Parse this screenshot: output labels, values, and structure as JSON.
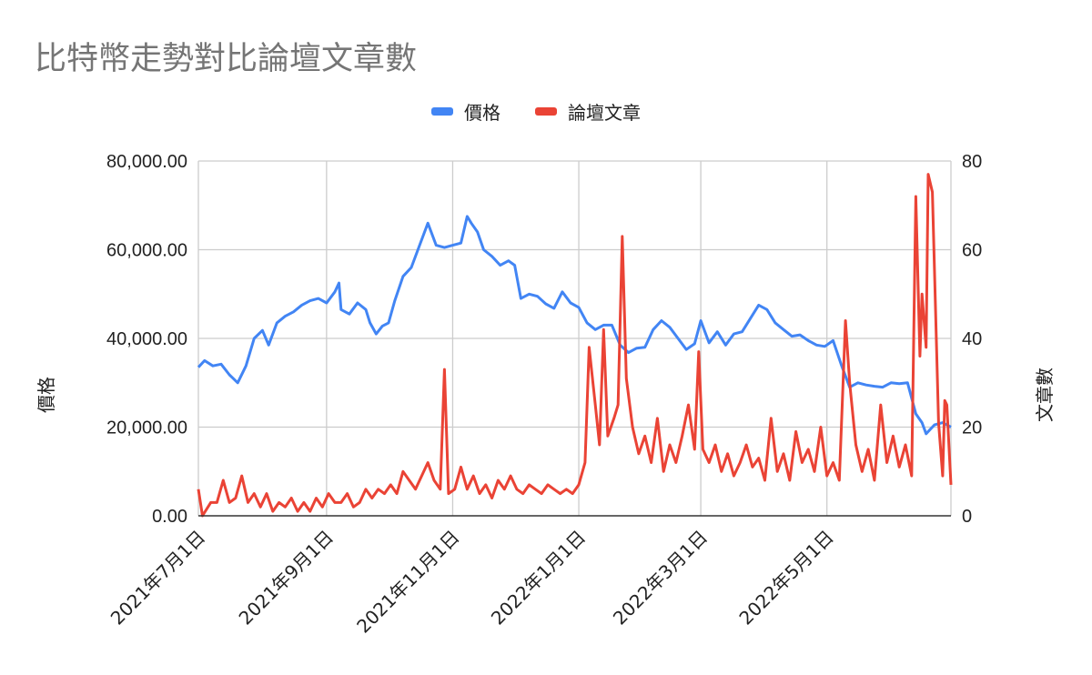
{
  "chart_data": {
    "type": "line",
    "title": "比特幣走勢對比論壇文章數",
    "ylabel": "價格",
    "y2label": "文章數",
    "ylim": [
      0,
      80000
    ],
    "y2lim": [
      0,
      80
    ],
    "yticks": [
      "0.00",
      "20,000.00",
      "40,000.00",
      "60,000.00",
      "80,000.00"
    ],
    "y2ticks": [
      "0",
      "20",
      "40",
      "60",
      "80"
    ],
    "xlim": [
      "2021-07-01",
      "2022-06-30"
    ],
    "xticks": [
      {
        "date": "2021-07-01",
        "label": "2021年7月1日"
      },
      {
        "date": "2021-09-01",
        "label": "2021年9月1日"
      },
      {
        "date": "2021-11-01",
        "label": "2021年11月1日"
      },
      {
        "date": "2022-01-01",
        "label": "2022年1月1日"
      },
      {
        "date": "2022-03-01",
        "label": "2022年3月1日"
      },
      {
        "date": "2022-05-01",
        "label": "2022年5月1日"
      }
    ],
    "grid": true,
    "legend_position": "top",
    "series": [
      {
        "name": "價格",
        "axis": "left",
        "color": "#4285f4",
        "points": [
          [
            "2021-07-01",
            33500
          ],
          [
            "2021-07-04",
            35000
          ],
          [
            "2021-07-08",
            33800
          ],
          [
            "2021-07-12",
            34200
          ],
          [
            "2021-07-16",
            31800
          ],
          [
            "2021-07-20",
            30000
          ],
          [
            "2021-07-24",
            33800
          ],
          [
            "2021-07-28",
            40000
          ],
          [
            "2021-08-01",
            41800
          ],
          [
            "2021-08-04",
            38500
          ],
          [
            "2021-08-08",
            43500
          ],
          [
            "2021-08-12",
            45000
          ],
          [
            "2021-08-16",
            46000
          ],
          [
            "2021-08-20",
            47500
          ],
          [
            "2021-08-24",
            48500
          ],
          [
            "2021-08-28",
            49000
          ],
          [
            "2021-09-01",
            48000
          ],
          [
            "2021-09-05",
            50500
          ],
          [
            "2021-09-07",
            52500
          ],
          [
            "2021-09-08",
            46500
          ],
          [
            "2021-09-12",
            45500
          ],
          [
            "2021-09-16",
            48000
          ],
          [
            "2021-09-20",
            46500
          ],
          [
            "2021-09-22",
            43500
          ],
          [
            "2021-09-25",
            41000
          ],
          [
            "2021-09-28",
            42800
          ],
          [
            "2021-10-01",
            43500
          ],
          [
            "2021-10-04",
            48500
          ],
          [
            "2021-10-08",
            54000
          ],
          [
            "2021-10-12",
            56000
          ],
          [
            "2021-10-16",
            61000
          ],
          [
            "2021-10-20",
            66000
          ],
          [
            "2021-10-24",
            61000
          ],
          [
            "2021-10-28",
            60500
          ],
          [
            "2021-11-01",
            61000
          ],
          [
            "2021-11-05",
            61500
          ],
          [
            "2021-11-08",
            67500
          ],
          [
            "2021-11-10",
            66000
          ],
          [
            "2021-11-13",
            64000
          ],
          [
            "2021-11-16",
            60000
          ],
          [
            "2021-11-20",
            58500
          ],
          [
            "2021-11-24",
            56500
          ],
          [
            "2021-11-28",
            57500
          ],
          [
            "2021-12-01",
            56500
          ],
          [
            "2021-12-04",
            49000
          ],
          [
            "2021-12-08",
            50000
          ],
          [
            "2021-12-12",
            49500
          ],
          [
            "2021-12-16",
            47800
          ],
          [
            "2021-12-20",
            46800
          ],
          [
            "2021-12-24",
            50500
          ],
          [
            "2021-12-28",
            48000
          ],
          [
            "2022-01-01",
            47000
          ],
          [
            "2022-01-05",
            43500
          ],
          [
            "2022-01-09",
            42000
          ],
          [
            "2022-01-13",
            43000
          ],
          [
            "2022-01-17",
            43000
          ],
          [
            "2022-01-21",
            38500
          ],
          [
            "2022-01-25",
            36800
          ],
          [
            "2022-01-29",
            37800
          ],
          [
            "2022-02-02",
            38000
          ],
          [
            "2022-02-06",
            42000
          ],
          [
            "2022-02-10",
            44000
          ],
          [
            "2022-02-14",
            42500
          ],
          [
            "2022-02-18",
            40000
          ],
          [
            "2022-02-22",
            37500
          ],
          [
            "2022-02-26",
            38800
          ],
          [
            "2022-03-01",
            44000
          ],
          [
            "2022-03-05",
            39000
          ],
          [
            "2022-03-09",
            41500
          ],
          [
            "2022-03-13",
            38500
          ],
          [
            "2022-03-17",
            41000
          ],
          [
            "2022-03-21",
            41500
          ],
          [
            "2022-03-25",
            44500
          ],
          [
            "2022-03-29",
            47500
          ],
          [
            "2022-04-02",
            46500
          ],
          [
            "2022-04-06",
            43500
          ],
          [
            "2022-04-10",
            42000
          ],
          [
            "2022-04-14",
            40500
          ],
          [
            "2022-04-18",
            40800
          ],
          [
            "2022-04-22",
            39500
          ],
          [
            "2022-04-26",
            38500
          ],
          [
            "2022-04-30",
            38200
          ],
          [
            "2022-05-04",
            39500
          ],
          [
            "2022-05-08",
            34000
          ],
          [
            "2022-05-12",
            29000
          ],
          [
            "2022-05-16",
            30000
          ],
          [
            "2022-05-20",
            29500
          ],
          [
            "2022-05-24",
            29200
          ],
          [
            "2022-05-28",
            29000
          ],
          [
            "2022-06-01",
            30000
          ],
          [
            "2022-06-05",
            29800
          ],
          [
            "2022-06-09",
            30000
          ],
          [
            "2022-06-13",
            23000
          ],
          [
            "2022-06-16",
            21000
          ],
          [
            "2022-06-18",
            18500
          ],
          [
            "2022-06-22",
            20500
          ],
          [
            "2022-06-26",
            21000
          ],
          [
            "2022-06-30",
            20000
          ]
        ]
      },
      {
        "name": "論壇文章",
        "axis": "right",
        "color": "#ea4335",
        "points": [
          [
            "2021-07-01",
            6
          ],
          [
            "2021-07-03",
            0
          ],
          [
            "2021-07-07",
            3
          ],
          [
            "2021-07-10",
            3
          ],
          [
            "2021-07-13",
            8
          ],
          [
            "2021-07-16",
            3
          ],
          [
            "2021-07-19",
            4
          ],
          [
            "2021-07-22",
            9
          ],
          [
            "2021-07-25",
            3
          ],
          [
            "2021-07-28",
            5
          ],
          [
            "2021-07-31",
            2
          ],
          [
            "2021-08-03",
            5
          ],
          [
            "2021-08-06",
            1
          ],
          [
            "2021-08-09",
            3
          ],
          [
            "2021-08-12",
            2
          ],
          [
            "2021-08-15",
            4
          ],
          [
            "2021-08-18",
            1
          ],
          [
            "2021-08-21",
            3
          ],
          [
            "2021-08-24",
            1
          ],
          [
            "2021-08-27",
            4
          ],
          [
            "2021-08-30",
            2
          ],
          [
            "2021-09-02",
            5
          ],
          [
            "2021-09-05",
            3
          ],
          [
            "2021-09-08",
            3
          ],
          [
            "2021-09-11",
            5
          ],
          [
            "2021-09-14",
            2
          ],
          [
            "2021-09-17",
            3
          ],
          [
            "2021-09-20",
            6
          ],
          [
            "2021-09-23",
            4
          ],
          [
            "2021-09-26",
            6
          ],
          [
            "2021-09-29",
            5
          ],
          [
            "2021-10-02",
            7
          ],
          [
            "2021-10-05",
            5
          ],
          [
            "2021-10-08",
            10
          ],
          [
            "2021-10-11",
            8
          ],
          [
            "2021-10-14",
            6
          ],
          [
            "2021-10-17",
            9
          ],
          [
            "2021-10-20",
            12
          ],
          [
            "2021-10-23",
            8
          ],
          [
            "2021-10-26",
            6
          ],
          [
            "2021-10-28",
            33
          ],
          [
            "2021-10-30",
            5
          ],
          [
            "2021-11-02",
            6
          ],
          [
            "2021-11-05",
            11
          ],
          [
            "2021-11-08",
            6
          ],
          [
            "2021-11-11",
            9
          ],
          [
            "2021-11-14",
            5
          ],
          [
            "2021-11-17",
            7
          ],
          [
            "2021-11-20",
            4
          ],
          [
            "2021-11-23",
            8
          ],
          [
            "2021-11-26",
            6
          ],
          [
            "2021-11-29",
            9
          ],
          [
            "2021-12-02",
            6
          ],
          [
            "2021-12-05",
            5
          ],
          [
            "2021-12-08",
            7
          ],
          [
            "2021-12-11",
            6
          ],
          [
            "2021-12-14",
            5
          ],
          [
            "2021-12-17",
            7
          ],
          [
            "2021-12-20",
            6
          ],
          [
            "2021-12-23",
            5
          ],
          [
            "2021-12-26",
            6
          ],
          [
            "2021-12-29",
            5
          ],
          [
            "2022-01-01",
            7
          ],
          [
            "2022-01-04",
            12
          ],
          [
            "2022-01-06",
            38
          ],
          [
            "2022-01-09",
            25
          ],
          [
            "2022-01-11",
            16
          ],
          [
            "2022-01-13",
            42
          ],
          [
            "2022-01-15",
            18
          ],
          [
            "2022-01-18",
            22
          ],
          [
            "2022-01-20",
            25
          ],
          [
            "2022-01-22",
            63
          ],
          [
            "2022-01-24",
            31
          ],
          [
            "2022-01-27",
            20
          ],
          [
            "2022-01-30",
            14
          ],
          [
            "2022-02-02",
            18
          ],
          [
            "2022-02-05",
            12
          ],
          [
            "2022-02-08",
            22
          ],
          [
            "2022-02-11",
            10
          ],
          [
            "2022-02-14",
            16
          ],
          [
            "2022-02-17",
            12
          ],
          [
            "2022-02-20",
            18
          ],
          [
            "2022-02-23",
            25
          ],
          [
            "2022-02-26",
            15
          ],
          [
            "2022-02-28",
            37
          ],
          [
            "2022-03-02",
            15
          ],
          [
            "2022-03-05",
            12
          ],
          [
            "2022-03-08",
            16
          ],
          [
            "2022-03-11",
            10
          ],
          [
            "2022-03-14",
            14
          ],
          [
            "2022-03-17",
            9
          ],
          [
            "2022-03-20",
            12
          ],
          [
            "2022-03-23",
            16
          ],
          [
            "2022-03-26",
            11
          ],
          [
            "2022-03-29",
            13
          ],
          [
            "2022-04-01",
            8
          ],
          [
            "2022-04-04",
            22
          ],
          [
            "2022-04-07",
            10
          ],
          [
            "2022-04-10",
            14
          ],
          [
            "2022-04-13",
            8
          ],
          [
            "2022-04-16",
            19
          ],
          [
            "2022-04-19",
            12
          ],
          [
            "2022-04-22",
            15
          ],
          [
            "2022-04-25",
            10
          ],
          [
            "2022-04-28",
            20
          ],
          [
            "2022-05-01",
            9
          ],
          [
            "2022-05-04",
            12
          ],
          [
            "2022-05-07",
            8
          ],
          [
            "2022-05-10",
            44
          ],
          [
            "2022-05-12",
            30
          ],
          [
            "2022-05-15",
            16
          ],
          [
            "2022-05-18",
            10
          ],
          [
            "2022-05-21",
            15
          ],
          [
            "2022-05-24",
            8
          ],
          [
            "2022-05-27",
            25
          ],
          [
            "2022-05-30",
            12
          ],
          [
            "2022-06-02",
            18
          ],
          [
            "2022-06-05",
            11
          ],
          [
            "2022-06-08",
            16
          ],
          [
            "2022-06-11",
            9
          ],
          [
            "2022-06-13",
            72
          ],
          [
            "2022-06-15",
            36
          ],
          [
            "2022-06-16",
            50
          ],
          [
            "2022-06-18",
            38
          ],
          [
            "2022-06-19",
            77
          ],
          [
            "2022-06-21",
            73
          ],
          [
            "2022-06-24",
            21
          ],
          [
            "2022-06-26",
            9
          ],
          [
            "2022-06-27",
            26
          ],
          [
            "2022-06-28",
            25
          ],
          [
            "2022-06-30",
            7
          ]
        ]
      }
    ]
  }
}
